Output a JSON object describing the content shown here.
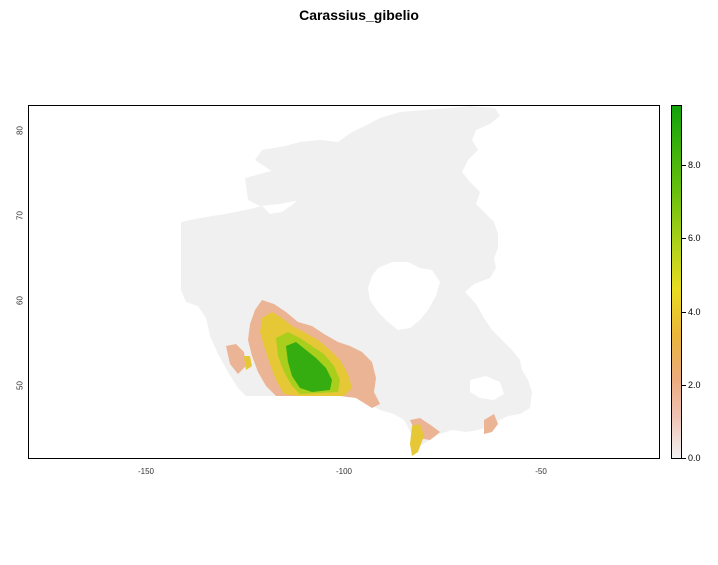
{
  "title": "Carassius_gibelio",
  "axes": {
    "y_ticks": [
      "50",
      "60",
      "70",
      "80"
    ],
    "x_ticks": [
      "-150",
      "-100",
      "-50"
    ]
  },
  "legend": {
    "labels": [
      "0.0",
      "2.0",
      "4.0",
      "6.0",
      "8.0"
    ],
    "range": [
      0,
      9.6
    ],
    "colors": {
      "low": "#f2f2f2",
      "mid_low": "#ebab7f",
      "mid": "#e8dd21",
      "high": "#11a20b"
    }
  },
  "map": {
    "land_color": "#f0f0f0"
  }
}
